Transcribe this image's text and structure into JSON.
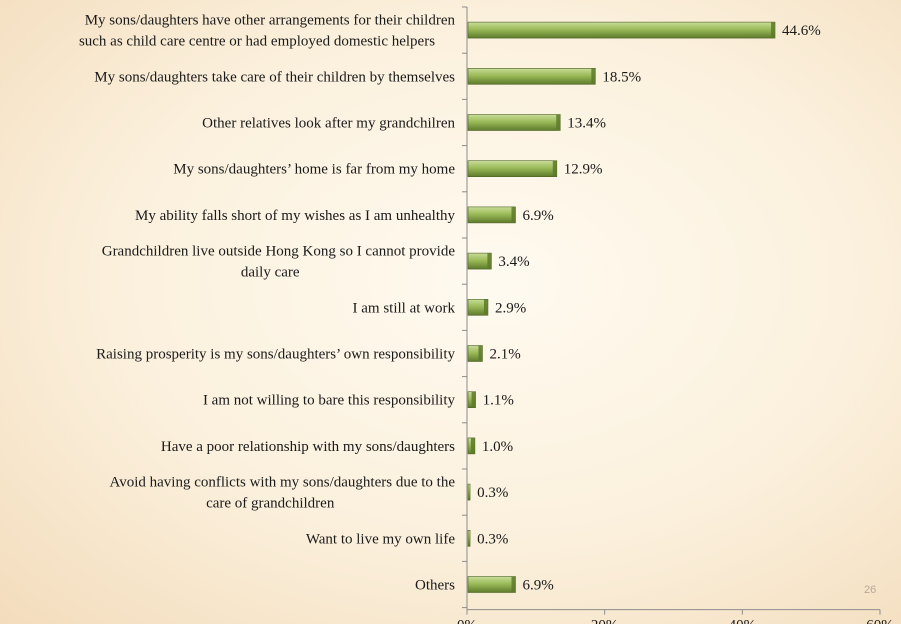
{
  "slide_number": "26",
  "colors": {
    "bar_fill": "#9bbb59",
    "bar_highlight": "#c9dd9a",
    "bar_shadow": "#5e7a2b",
    "bar_edge": "#4f6228",
    "axis": "#8c8c8c",
    "text": "#1a1a1a"
  },
  "chart_data": {
    "type": "bar",
    "orientation": "horizontal",
    "title": "",
    "xlabel": "",
    "ylabel": "",
    "xlim": [
      0,
      60
    ],
    "xticks": [
      "0%",
      "20%",
      "40%",
      "60%"
    ],
    "grid": false,
    "legend": "none",
    "categories": [
      [
        "My sons/daughters have other arrangements for their children",
        "such as child care centre or had employed domestic helpers"
      ],
      [
        "My sons/daughters take care of their children by themselves"
      ],
      [
        "Other relatives look after my grandchilren"
      ],
      [
        "My sons/daughters’ home is far from my home"
      ],
      [
        "My ability falls short of my wishes as I am unhealthy"
      ],
      [
        "Grandchildren live outside Hong Kong so I cannot provide",
        "daily care"
      ],
      [
        "I am still at work"
      ],
      [
        "Raising prosperity is my sons/daughters’ own responsibility"
      ],
      [
        "I am not willing to bare this responsibility"
      ],
      [
        "Have a poor relationship with my sons/daughters"
      ],
      [
        "Avoid having conflicts with my sons/daughters due to the",
        "care of grandchildren"
      ],
      [
        "Want to live my own life"
      ],
      [
        "Others"
      ]
    ],
    "values": [
      44.6,
      18.5,
      13.4,
      12.9,
      6.9,
      3.4,
      2.9,
      2.1,
      1.1,
      1.0,
      0.3,
      0.3,
      6.9
    ],
    "value_labels": [
      "44.6%",
      "18.5%",
      "13.4%",
      "12.9%",
      "6.9%",
      "3.4%",
      "2.9%",
      "2.1%",
      "1.1%",
      "1.0%",
      "0.3%",
      "0.3%",
      "6.9%"
    ]
  }
}
